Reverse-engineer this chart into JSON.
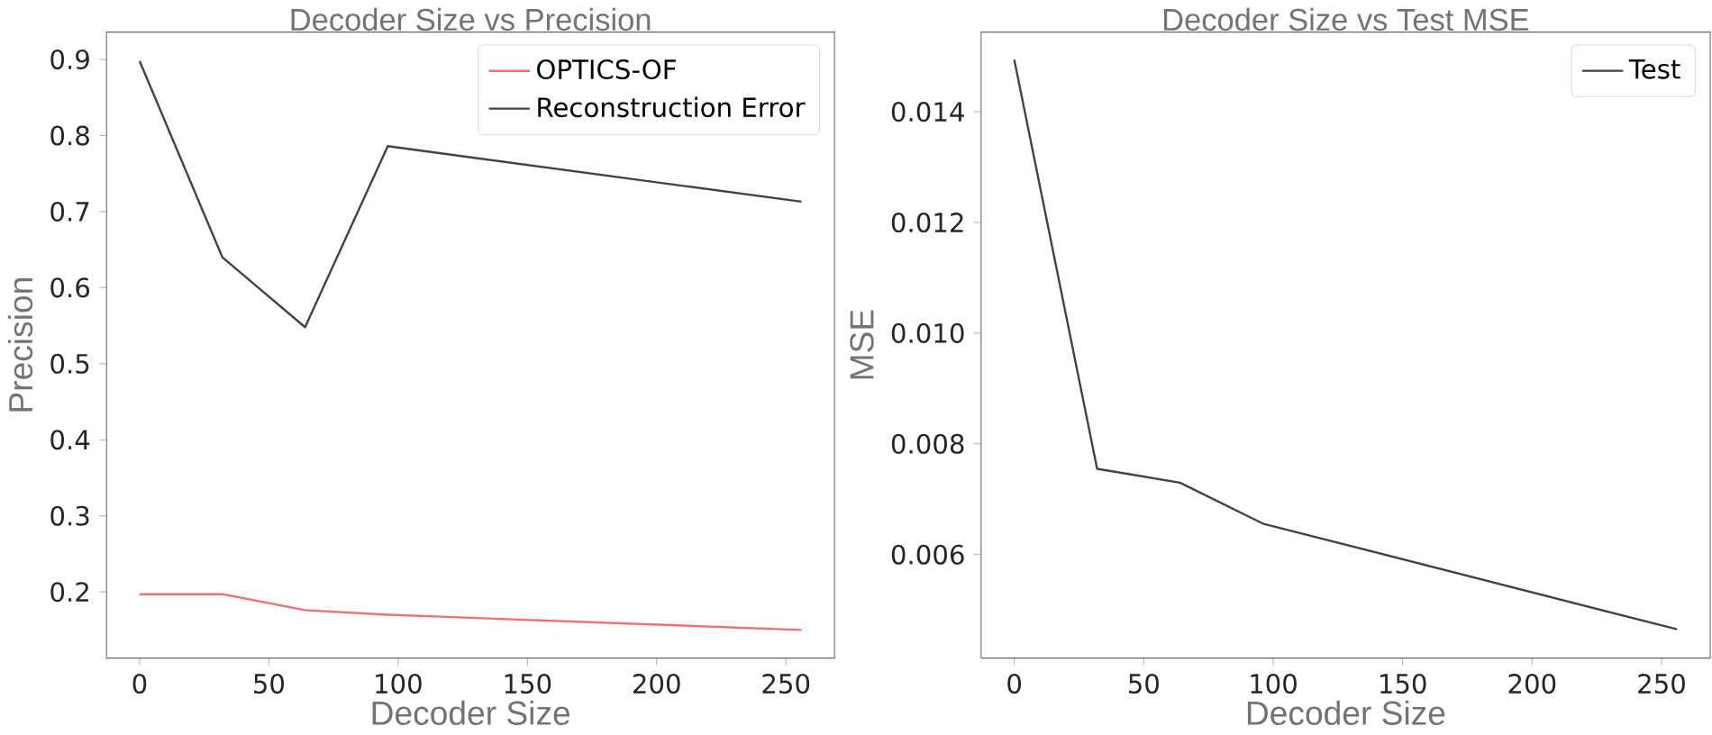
{
  "chart_data": [
    {
      "type": "line",
      "title": "Decoder Size vs Precision",
      "xlabel": "Decoder Size",
      "ylabel": "Precision",
      "x": [
        0,
        32,
        64,
        96,
        256
      ],
      "xlim": [
        -12.8,
        268.8
      ],
      "xticks": [
        0,
        50,
        100,
        150,
        200,
        250
      ],
      "ylim": [
        0.113,
        0.936
      ],
      "yticks": [
        0.2,
        0.3,
        0.4,
        0.5,
        0.6,
        0.7,
        0.8,
        0.9
      ],
      "legend": "top right",
      "marker": "none",
      "line_style": "solid",
      "series": [
        {
          "name": "OPTICS-OF",
          "color": "#f07070",
          "values": [
            0.197,
            0.197,
            0.176,
            0.17,
            0.15
          ]
        },
        {
          "name": "Reconstruction Error",
          "color": "#3c4250",
          "values": [
            0.898,
            0.64,
            0.548,
            0.786,
            0.713
          ]
        }
      ]
    },
    {
      "type": "line",
      "title": "Decoder Size vs Test MSE",
      "xlabel": "Decoder Size",
      "ylabel": "MSE",
      "x": [
        0,
        32,
        64,
        96,
        256
      ],
      "xlim": [
        -12.8,
        268.8
      ],
      "xticks": [
        0,
        50,
        100,
        150,
        200,
        250
      ],
      "ylim": [
        0.00413,
        0.01544
      ],
      "yticks": [
        0.006,
        0.008,
        {
          "value": 0.01,
          "label": "0.010"
        },
        0.012,
        0.014
      ],
      "legend": "top right",
      "marker": "none",
      "line_style": "solid",
      "series": [
        {
          "name": "Test",
          "color": "#3c4250",
          "values": [
            0.01494,
            0.00755,
            0.0073,
            0.00656,
            0.00465
          ]
        }
      ]
    }
  ]
}
